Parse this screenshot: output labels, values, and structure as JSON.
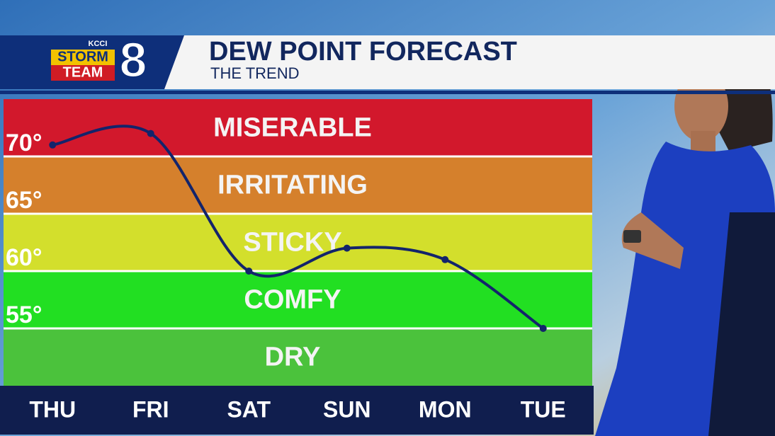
{
  "header": {
    "logo": {
      "station": "KCCI",
      "line1": "STORM",
      "line2": "TEAM",
      "channel": "8"
    }
  },
  "chart_data": {
    "type": "line",
    "title": "DEW POINT FORECAST",
    "subtitle": "THE TREND",
    "categories": [
      "THU",
      "FRI",
      "SAT",
      "SUN",
      "MON",
      "TUE"
    ],
    "series": [
      {
        "name": "Dew point",
        "color": "#13246b",
        "values": [
          71,
          72,
          60,
          62,
          61,
          55
        ]
      }
    ],
    "ylim": [
      50,
      75
    ],
    "yticks": [
      {
        "value": 70,
        "label": "70°"
      },
      {
        "value": 65,
        "label": "65°"
      },
      {
        "value": 60,
        "label": "60°"
      },
      {
        "value": 55,
        "label": "55°"
      }
    ],
    "bands": [
      {
        "name": "MISERABLE",
        "from": 70,
        "to": 75,
        "color": "#d2182c"
      },
      {
        "name": "IRRITATING",
        "from": 65,
        "to": 70,
        "color": "#d5802c"
      },
      {
        "name": "STICKY",
        "from": 60,
        "to": 65,
        "color": "#d3df2c"
      },
      {
        "name": "COMFY",
        "from": 55,
        "to": 60,
        "color": "#22df22"
      },
      {
        "name": "DRY",
        "from": 50,
        "to": 55,
        "color": "#4bc23c"
      }
    ]
  }
}
